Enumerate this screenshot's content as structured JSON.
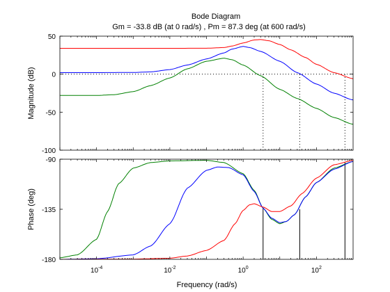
{
  "chart_data": {
    "type": "line",
    "title": "Bode Diagram",
    "subtitle": "Gm = -33.8 dB (at 0 rad/s) ,  Pm = 87.3 deg (at 600 rad/s)",
    "xlabel": "Frequency  (rad/s)",
    "xscale": "log",
    "xlim": [
      1e-05,
      1000
    ],
    "x_ticks": [
      {
        "value": 0.0001,
        "base": "10",
        "exp": "-4"
      },
      {
        "value": 0.01,
        "base": "10",
        "exp": "-2"
      },
      {
        "value": 1,
        "base": "10",
        "exp": "0"
      },
      {
        "value": 100,
        "base": "10",
        "exp": "2"
      }
    ],
    "grid": false,
    "colors": {
      "red": "#ff0000",
      "blue": "#0000ff",
      "green": "#008000",
      "markers": "#000000"
    },
    "magnitude": {
      "ylabel": "Magnitude (dB)",
      "ylim": [
        -100,
        50
      ],
      "y_ticks": [
        50,
        0,
        -50,
        -100
      ],
      "reference_line": 0,
      "series": [
        {
          "color": "red",
          "x": [
            1e-05,
            0.0001,
            0.001,
            0.01,
            0.1,
            0.3,
            0.5,
            1,
            2,
            3,
            5,
            10,
            20,
            50,
            100,
            300,
            1000
          ],
          "values": [
            34,
            34,
            34,
            34,
            34.1,
            35,
            37,
            41,
            45,
            45.5,
            44,
            39,
            32,
            22,
            13,
            2,
            -6
          ]
        },
        {
          "color": "blue",
          "x": [
            1e-05,
            0.0001,
            0.001,
            0.003,
            0.01,
            0.03,
            0.1,
            0.3,
            0.5,
            1,
            1.5,
            3,
            10,
            30,
            100,
            300,
            1000
          ],
          "values": [
            2,
            2,
            2.2,
            3,
            6,
            12,
            20,
            28,
            33,
            36.5,
            35,
            30,
            17,
            2,
            -13,
            -25,
            -34
          ]
        },
        {
          "color": "green",
          "x": [
            1e-05,
            0.0001,
            0.0003,
            0.001,
            0.003,
            0.01,
            0.03,
            0.1,
            0.3,
            0.5,
            1,
            3,
            10,
            30,
            100,
            300,
            1000
          ],
          "values": [
            -28,
            -28,
            -27,
            -23,
            -15,
            -5,
            7,
            17,
            21,
            19,
            12,
            -2,
            -20,
            -32,
            -45,
            -57,
            -66
          ]
        }
      ],
      "markers": [
        {
          "x": 3.5,
          "from": -100,
          "to": 0
        },
        {
          "x": 35,
          "from": -100,
          "to": 0
        },
        {
          "x": 600,
          "from": -100,
          "to": 0
        }
      ]
    },
    "phase": {
      "ylabel": "Phase (deg)",
      "ylim": [
        -180,
        -90
      ],
      "y_ticks": [
        -90,
        -135,
        -180
      ],
      "series": [
        {
          "color": "green",
          "x": [
            1e-05,
            3e-05,
            0.0001,
            0.0002,
            0.0004,
            0.001,
            0.003,
            0.01,
            0.1,
            0.3,
            1,
            2,
            3.5,
            6,
            10,
            15,
            25,
            50,
            100,
            300,
            1000
          ],
          "values": [
            -178.6,
            -176,
            -162,
            -137,
            -112,
            -98,
            -93,
            -91.5,
            -91,
            -93,
            -103,
            -118,
            -134,
            -144,
            -148,
            -146,
            -140,
            -124,
            -111,
            -98,
            -92
          ]
        },
        {
          "color": "blue",
          "x": [
            1e-05,
            0.0001,
            0.001,
            0.003,
            0.01,
            0.03,
            0.1,
            0.2,
            0.4,
            1,
            2,
            3.5,
            6,
            10,
            15,
            25,
            50,
            100,
            300,
            1000
          ],
          "values": [
            -180,
            -179.5,
            -176,
            -168,
            -148,
            -116,
            -100,
            -97,
            -97.5,
            -104,
            -119,
            -134,
            -143,
            -147,
            -146,
            -140,
            -124,
            -111,
            -99,
            -92
          ]
        },
        {
          "color": "red",
          "x": [
            1e-05,
            0.001,
            0.01,
            0.03,
            0.1,
            0.3,
            0.6,
            1,
            1.5,
            2,
            3.5,
            6,
            10,
            20,
            40,
            100,
            300,
            1000
          ],
          "values": [
            -180,
            -179.8,
            -179,
            -177,
            -172,
            -163,
            -148,
            -136,
            -131,
            -130,
            -133,
            -137,
            -137,
            -132,
            -121,
            -107,
            -95,
            -91
          ]
        }
      ],
      "markers": [
        {
          "x": 3.5,
          "from": -180,
          "to": -134
        },
        {
          "x": 35,
          "from": -180,
          "to": -135
        },
        {
          "x": 600,
          "from": -180,
          "to": -93
        }
      ]
    }
  }
}
